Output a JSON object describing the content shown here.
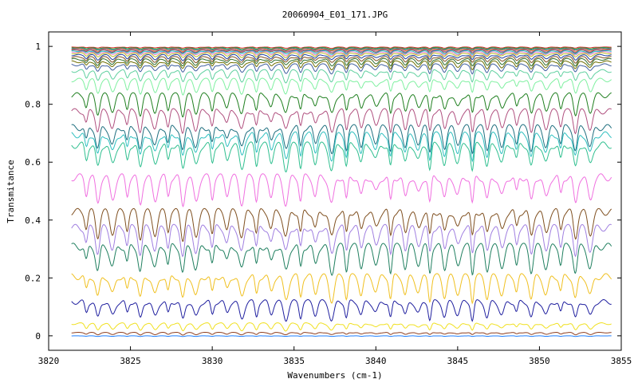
{
  "chart_data": {
    "type": "line",
    "title": "20060904_E01_171.JPG",
    "xlabel": "Wavenumbers (cm-1)",
    "ylabel": "Transmitance",
    "xlim": [
      3820,
      3855
    ],
    "ylim": [
      -0.05,
      1.05
    ],
    "x_ticks": [
      3820,
      3825,
      3830,
      3835,
      3840,
      3845,
      3850,
      3855
    ],
    "y_ticks": [
      0,
      0.2,
      0.4,
      0.6,
      0.8,
      1
    ],
    "x_tick_labels": [
      "3820",
      "3825",
      "3830",
      "3835",
      "3840",
      "3845",
      "3850",
      "3855"
    ],
    "y_tick_labels": [
      "0",
      "0.2",
      "0.4",
      "0.6",
      "0.8",
      "1"
    ],
    "x_start": 3821.4,
    "x_end": 3854.4,
    "grid": false,
    "legend": "none",
    "absorption_lines_cm1": [
      3822.3,
      3823.0,
      3823.9,
      3824.8,
      3825.6,
      3826.5,
      3827.3,
      3828.2,
      3829.0,
      3830.0,
      3830.9,
      3831.8,
      3832.7,
      3833.6,
      3834.5,
      3835.4,
      3836.3,
      3837.3,
      3838.2,
      3839.1,
      3840.0,
      3840.9,
      3841.8,
      3842.6,
      3843.3,
      3844.2,
      3845.0,
      3845.9,
      3846.8,
      3847.7,
      3848.6,
      3849.5,
      3850.4,
      3851.3,
      3852.2,
      3853.1
    ],
    "series": [
      {
        "baseline": 0.998,
        "depth": 0.004,
        "color": "#d62728"
      },
      {
        "baseline": 0.996,
        "depth": 0.006,
        "color": "#2ca02c"
      },
      {
        "baseline": 0.994,
        "depth": 0.007,
        "color": "#1f77b4"
      },
      {
        "baseline": 0.992,
        "depth": 0.008,
        "color": "#ff7f0e"
      },
      {
        "baseline": 0.99,
        "depth": 0.009,
        "color": "#9467bd"
      },
      {
        "baseline": 0.988,
        "depth": 0.01,
        "color": "#8c564b"
      },
      {
        "baseline": 0.985,
        "depth": 0.011,
        "color": "#17becf"
      },
      {
        "baseline": 0.982,
        "depth": 0.013,
        "color": "#e377c2"
      },
      {
        "baseline": 0.978,
        "depth": 0.015,
        "color": "#bcbd22"
      },
      {
        "baseline": 0.972,
        "depth": 0.018,
        "color": "#1f3f9f"
      },
      {
        "baseline": 0.965,
        "depth": 0.02,
        "color": "#7f4f1f"
      },
      {
        "baseline": 0.958,
        "depth": 0.023,
        "color": "#2f6f2f"
      },
      {
        "baseline": 0.95,
        "depth": 0.026,
        "color": "#6f6f00"
      },
      {
        "baseline": 0.94,
        "depth": 0.03,
        "color": "#3f5f9f"
      },
      {
        "baseline": 0.92,
        "depth": 0.04,
        "color": "#5fd09f"
      },
      {
        "baseline": 0.89,
        "depth": 0.05,
        "color": "#7ff0a0"
      },
      {
        "baseline": 0.84,
        "depth": 0.07,
        "color": "#1f7f1f"
      },
      {
        "baseline": 0.785,
        "depth": 0.075,
        "color": "#b0507f"
      },
      {
        "baseline": 0.73,
        "depth": 0.085,
        "color": "#1f6f7f"
      },
      {
        "baseline": 0.705,
        "depth": 0.085,
        "color": "#2fc0c0"
      },
      {
        "baseline": 0.67,
        "depth": 0.09,
        "color": "#2fbf8f"
      },
      {
        "baseline": 0.56,
        "depth": 0.1,
        "color": "#f070e0"
      },
      {
        "baseline": 0.44,
        "depth": 0.095,
        "color": "#7f4f1f"
      },
      {
        "baseline": 0.385,
        "depth": 0.095,
        "color": "#a07fe0"
      },
      {
        "baseline": 0.32,
        "depth": 0.095,
        "color": "#1f7f5f"
      },
      {
        "baseline": 0.215,
        "depth": 0.085,
        "color": "#f0c020"
      },
      {
        "baseline": 0.125,
        "depth": 0.065,
        "color": "#1f1f9f"
      },
      {
        "baseline": 0.045,
        "depth": 0.025,
        "color": "#f0e020"
      },
      {
        "baseline": 0.012,
        "depth": 0.008,
        "color": "#8f3f1f"
      },
      {
        "baseline": 0.0,
        "depth": 0.002,
        "color": "#1f7fff"
      }
    ]
  }
}
